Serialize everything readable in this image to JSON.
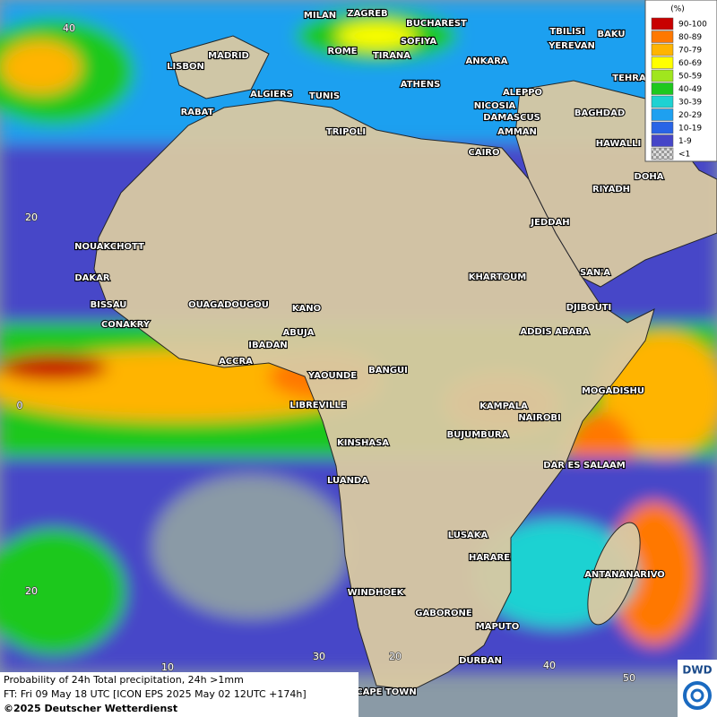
{
  "map": {
    "cities": [
      "MILAN",
      "ZAGREB",
      "BUCHAREST",
      "TBILISI",
      "BAKU",
      "MADRID",
      "ROME",
      "SOFIYA",
      "TIRANA",
      "YEREVAN",
      "ANKARA",
      "LISBON",
      "TEHRA",
      "ALGIERS",
      "TUNIS",
      "ATHENS",
      "ALEPPO",
      "RABAT",
      "NICOSIA",
      "BAGHDAD",
      "TRIPOLI",
      "DAMASCUS",
      "AMMAN",
      "HAWALLI",
      "CAIRO",
      "DOHA",
      "RIYADH",
      "JEDDAH",
      "NOUAKCHOTT",
      "DAKAR",
      "KHARTOUM",
      "SAN'A",
      "BISSAU",
      "OUAGADOUGOU",
      "KANO",
      "DJIBOUTI",
      "CONAKRY",
      "ABUJA",
      "ADDIS ABABA",
      "IBADAN",
      "ACCRA",
      "YAOUNDE",
      "BANGUI",
      "MOGADISHU",
      "LIBREVILLE",
      "KAMPALA",
      "NAIROBI",
      "BUJUMBURA",
      "KINSHASA",
      "DAR ES SALAAM",
      "LUANDA",
      "LUSAKA",
      "HARARE",
      "ANTANANARIVO",
      "WINDHOEK",
      "GABORONE",
      "MAPUTO",
      "DURBAN",
      "CAPE TOWN"
    ],
    "grid_labels": [
      "40",
      "20",
      "0",
      "20",
      "10",
      "20",
      "30",
      "40",
      "50"
    ]
  },
  "legend": {
    "unit": "(%)",
    "items": [
      {
        "label": "90-100",
        "color": "#c80000"
      },
      {
        "label": "80-89",
        "color": "#ff7800"
      },
      {
        "label": "70-79",
        "color": "#ffb400"
      },
      {
        "label": "60-69",
        "color": "#ffff00"
      },
      {
        "label": "50-59",
        "color": "#a0e61e"
      },
      {
        "label": "40-49",
        "color": "#1ec81e"
      },
      {
        "label": "30-39",
        "color": "#1ed2d2"
      },
      {
        "label": "20-29",
        "color": "#1ea0f0"
      },
      {
        "label": "10-19",
        "color": "#2864e6"
      },
      {
        "label": "1-9",
        "color": "#4646c8"
      },
      {
        "label": "<1",
        "color": "#b4b4b4"
      }
    ]
  },
  "footer": {
    "line1": "Probability of 24h Total precipitation, 24h >1mm",
    "line2": "FT: Fri 09 May 18 UTC [ICON EPS 2025 May 02 12UTC +174h]",
    "line3": "©2025 Deutscher Wetterdienst"
  },
  "logo": "DWD"
}
